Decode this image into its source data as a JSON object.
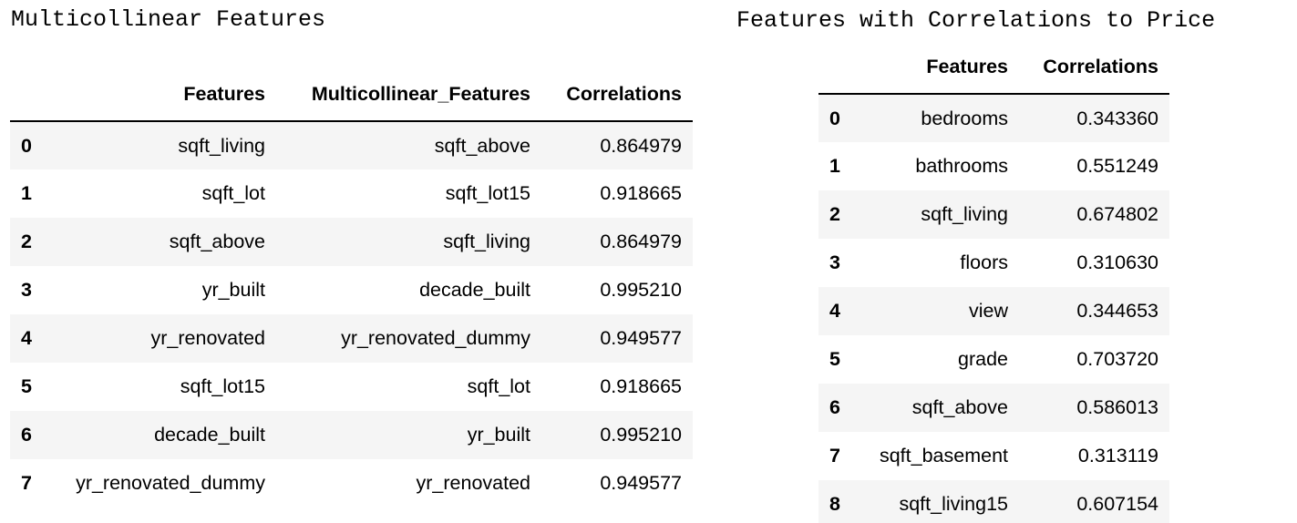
{
  "left": {
    "caption": "Multicollinear Features",
    "columns": [
      "Features",
      "Multicollinear_Features",
      "Correlations"
    ],
    "rows": [
      {
        "index": "0",
        "feature": "sqft_living",
        "multicollinear": "sqft_above",
        "corr": "0.864979"
      },
      {
        "index": "1",
        "feature": "sqft_lot",
        "multicollinear": "sqft_lot15",
        "corr": "0.918665"
      },
      {
        "index": "2",
        "feature": "sqft_above",
        "multicollinear": "sqft_living",
        "corr": "0.864979"
      },
      {
        "index": "3",
        "feature": "yr_built",
        "multicollinear": "decade_built",
        "corr": "0.995210"
      },
      {
        "index": "4",
        "feature": "yr_renovated",
        "multicollinear": "yr_renovated_dummy",
        "corr": "0.949577"
      },
      {
        "index": "5",
        "feature": "sqft_lot15",
        "multicollinear": "sqft_lot",
        "corr": "0.918665"
      },
      {
        "index": "6",
        "feature": "decade_built",
        "multicollinear": "yr_built",
        "corr": "0.995210"
      },
      {
        "index": "7",
        "feature": "yr_renovated_dummy",
        "multicollinear": "yr_renovated",
        "corr": "0.949577"
      }
    ]
  },
  "right": {
    "caption": "Features with Correlations to Price",
    "columns": [
      "Features",
      "Correlations"
    ],
    "rows": [
      {
        "index": "0",
        "feature": "bedrooms",
        "corr": "0.343360"
      },
      {
        "index": "1",
        "feature": "bathrooms",
        "corr": "0.551249"
      },
      {
        "index": "2",
        "feature": "sqft_living",
        "corr": "0.674802"
      },
      {
        "index": "3",
        "feature": "floors",
        "corr": "0.310630"
      },
      {
        "index": "4",
        "feature": "view",
        "corr": "0.344653"
      },
      {
        "index": "5",
        "feature": "grade",
        "corr": "0.703720"
      },
      {
        "index": "6",
        "feature": "sqft_above",
        "corr": "0.586013"
      },
      {
        "index": "7",
        "feature": "sqft_basement",
        "corr": "0.313119"
      },
      {
        "index": "8",
        "feature": "sqft_living15",
        "corr": "0.607154"
      }
    ]
  }
}
